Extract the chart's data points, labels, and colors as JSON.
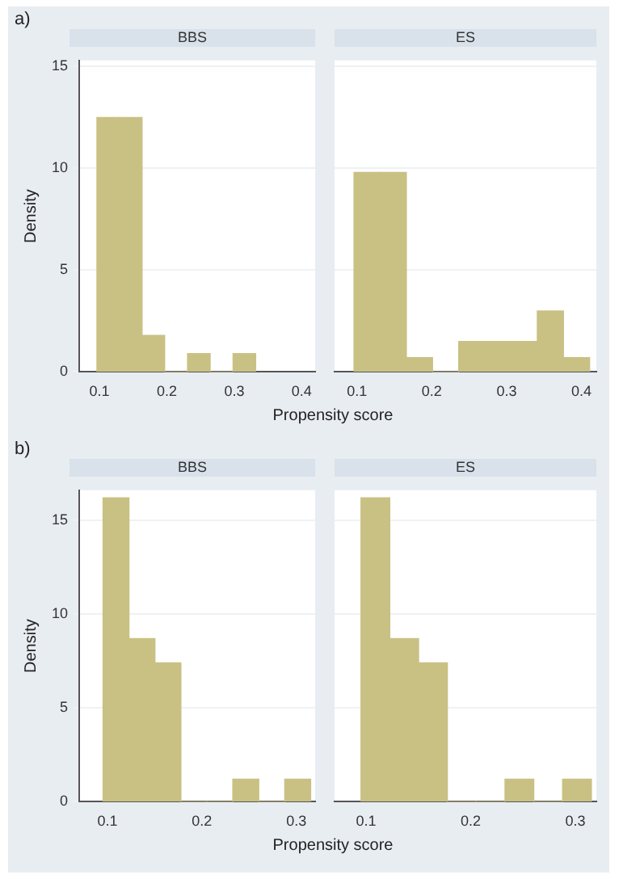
{
  "chart_data": [
    {
      "type": "histogram",
      "title": "BBS",
      "annotations": [
        "a)"
      ],
      "xlabel": "Propensity score",
      "ylabel": "Density",
      "color": "#c9c184",
      "grid": "y",
      "bins": [
        0.096,
        0.13,
        0.163,
        0.197,
        0.231,
        0.264,
        0.298,
        0.332
      ],
      "values": [
        12.5,
        12.5,
        1.8,
        0,
        0.9,
        0,
        0.9
      ],
      "xlim": [
        0.07,
        0.42
      ],
      "xticks": [
        0.1,
        0.2,
        0.3,
        0.4
      ],
      "ylim": [
        0,
        15.3
      ],
      "yticks": [
        0,
        5,
        10,
        15
      ]
    },
    {
      "type": "histogram",
      "title": "ES",
      "color": "#c9c184",
      "grid": "y",
      "tick_labels": "x",
      "bins": [
        0.096,
        0.131,
        0.166,
        0.201,
        0.236,
        0.271,
        0.306,
        0.341,
        0.376,
        0.411
      ],
      "values": [
        9.8,
        9.8,
        0.7,
        0,
        1.5,
        1.5,
        1.5,
        3.0,
        0.7
      ],
      "xlim": [
        0.07,
        0.42
      ],
      "xticks": [
        0.1,
        0.2,
        0.3,
        0.4
      ],
      "ylim": [
        0,
        15.3
      ],
      "yticks": [
        0,
        5,
        10,
        15
      ]
    },
    {
      "type": "histogram",
      "title": "BBS",
      "annotations": [
        "b)"
      ],
      "xlabel": "Propensity score",
      "ylabel": "Density",
      "color": "#c9c184",
      "grid": "y",
      "bins": [
        0.095,
        0.123,
        0.15,
        0.178,
        0.205,
        0.233,
        0.26,
        0.288,
        0.315
      ],
      "values": [
        16.2,
        8.7,
        7.4,
        0,
        0,
        1.2,
        0,
        1.2
      ],
      "xlim": [
        0.07,
        0.32
      ],
      "xticks": [
        0.1,
        0.2,
        0.3
      ],
      "ylim": [
        0,
        16.6
      ],
      "yticks": [
        0,
        5,
        10,
        15
      ]
    },
    {
      "type": "histogram",
      "title": "ES",
      "color": "#c9c184",
      "grid": "y",
      "tick_labels": "x",
      "bins": [
        0.095,
        0.123,
        0.15,
        0.178,
        0.205,
        0.233,
        0.26,
        0.288,
        0.315
      ],
      "values": [
        16.2,
        8.7,
        7.4,
        0,
        0,
        1.2,
        0,
        1.2
      ],
      "xlim": [
        0.07,
        0.32
      ],
      "xticks": [
        0.1,
        0.2,
        0.3
      ],
      "ylim": [
        0,
        16.6
      ],
      "yticks": [
        0,
        5,
        10,
        15
      ]
    }
  ]
}
